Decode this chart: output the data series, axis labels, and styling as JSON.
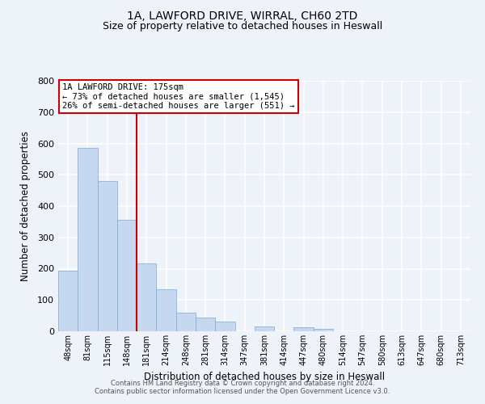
{
  "title_line1": "1A, LAWFORD DRIVE, WIRRAL, CH60 2TD",
  "title_line2": "Size of property relative to detached houses in Heswall",
  "xlabel": "Distribution of detached houses by size in Heswall",
  "ylabel": "Number of detached properties",
  "bar_labels": [
    "48sqm",
    "81sqm",
    "115sqm",
    "148sqm",
    "181sqm",
    "214sqm",
    "248sqm",
    "281sqm",
    "314sqm",
    "347sqm",
    "381sqm",
    "414sqm",
    "447sqm",
    "480sqm",
    "514sqm",
    "547sqm",
    "580sqm",
    "613sqm",
    "647sqm",
    "680sqm",
    "713sqm"
  ],
  "bar_values": [
    193,
    585,
    480,
    355,
    217,
    133,
    60,
    44,
    30,
    0,
    15,
    0,
    12,
    8,
    0,
    0,
    0,
    0,
    0,
    0,
    0
  ],
  "bar_color": "#c5d8f0",
  "bar_edge_color": "#7aaad4",
  "vline_x_index": 4,
  "vline_color": "#cc0000",
  "ylim": [
    0,
    800
  ],
  "yticks": [
    0,
    100,
    200,
    300,
    400,
    500,
    600,
    700,
    800
  ],
  "annotation_title": "1A LAWFORD DRIVE: 175sqm",
  "annotation_line2": "← 73% of detached houses are smaller (1,545)",
  "annotation_line3": "26% of semi-detached houses are larger (551) →",
  "annotation_box_color": "#ffffff",
  "annotation_border_color": "#cc0000",
  "footer_line1": "Contains HM Land Registry data © Crown copyright and database right 2024.",
  "footer_line2": "Contains public sector information licensed under the Open Government Licence v3.0.",
  "background_color": "#eef2f9",
  "grid_color": "#ffffff",
  "title_fontsize": 10,
  "subtitle_fontsize": 9,
  "ylabel_fontsize": 8.5,
  "xlabel_fontsize": 8.5,
  "tick_fontsize": 7,
  "footer_fontsize": 6,
  "ann_fontsize": 7.5
}
